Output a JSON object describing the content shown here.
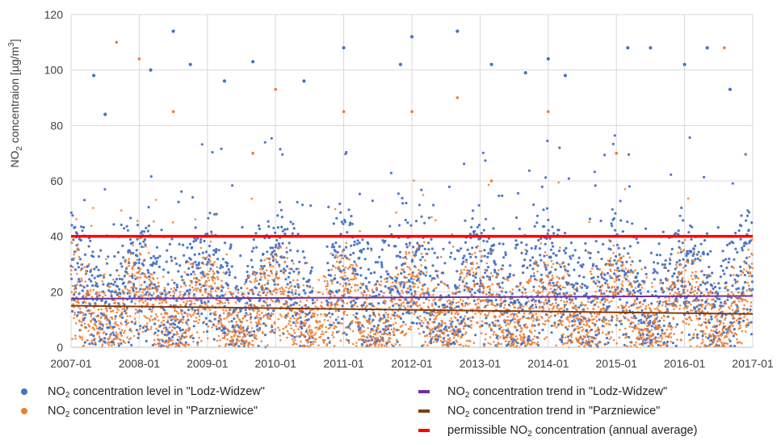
{
  "chart_data": {
    "type": "scatter",
    "title": "",
    "xlabel": "",
    "ylabel_parts": [
      "NO",
      "2",
      " concentraion [µg/m",
      "3",
      "]"
    ],
    "ylim": [
      0,
      120
    ],
    "yticks": [
      "0",
      "20",
      "40",
      "60",
      "80",
      "100",
      "120"
    ],
    "xlim": [
      "2007-01",
      "2017-01"
    ],
    "xticks": [
      "2007-01",
      "2008-01",
      "2009-01",
      "2010-01",
      "2011-01",
      "2012-01",
      "2013-01",
      "2014-01",
      "2015-01",
      "2016-01",
      "2017-01"
    ],
    "grid": true,
    "legend_position": "bottom",
    "series": [
      {
        "name_parts": [
          "NO",
          "2",
          " concentration level in \"Lodz-Widzew\""
        ],
        "kind": "scatter",
        "color": "#4472C4",
        "typical_range": [
          5,
          45
        ],
        "peak_values": [
          [
            "2007-05",
            98
          ],
          [
            "2007-07",
            84
          ],
          [
            "2008-03",
            100
          ],
          [
            "2008-07",
            114
          ],
          [
            "2008-10",
            102
          ],
          [
            "2009-04",
            96
          ],
          [
            "2009-09",
            103
          ],
          [
            "2010-06",
            96
          ],
          [
            "2011-01",
            108
          ],
          [
            "2011-11",
            102
          ],
          [
            "2012-01",
            112
          ],
          [
            "2012-09",
            114
          ],
          [
            "2013-03",
            102
          ],
          [
            "2013-09",
            99
          ],
          [
            "2014-01",
            104
          ],
          [
            "2014-04",
            98
          ],
          [
            "2015-03",
            108
          ],
          [
            "2015-07",
            108
          ],
          [
            "2016-01",
            102
          ],
          [
            "2016-05",
            108
          ],
          [
            "2016-09",
            93
          ]
        ]
      },
      {
        "name_parts": [
          "NO",
          "2",
          " concentration level in \"Parzniewice\""
        ],
        "kind": "scatter",
        "color": "#ED7D31",
        "typical_range": [
          3,
          40
        ],
        "peak_values": [
          [
            "2007-09",
            110
          ],
          [
            "2008-01",
            104
          ],
          [
            "2008-07",
            85
          ],
          [
            "2009-09",
            70
          ],
          [
            "2010-01",
            93
          ],
          [
            "2011-01",
            85
          ],
          [
            "2012-01",
            85
          ],
          [
            "2012-09",
            90
          ],
          [
            "2013-03",
            60
          ],
          [
            "2014-01",
            85
          ],
          [
            "2015-01",
            70
          ],
          [
            "2016-08",
            108
          ]
        ]
      },
      {
        "name_parts": [
          "NO",
          "2",
          " concentration trend in \"Lodz-Widzew\""
        ],
        "kind": "line",
        "color": "#7030A0",
        "x": [
          "2007-01",
          "2017-01"
        ],
        "y": [
          17.5,
          18.5
        ]
      },
      {
        "name_parts": [
          "NO",
          "2",
          " concentration trend in \"Parzniewice\""
        ],
        "kind": "line",
        "color": "#843C0C",
        "x": [
          "2007-01",
          "2017-01"
        ],
        "y": [
          15,
          12
        ]
      },
      {
        "name_parts": [
          "permissible NO",
          "2",
          " concentration (annual average)"
        ],
        "kind": "line",
        "color": "#FF0000",
        "x": [
          "2007-01",
          "2017-01"
        ],
        "y": [
          40,
          40
        ]
      }
    ]
  }
}
